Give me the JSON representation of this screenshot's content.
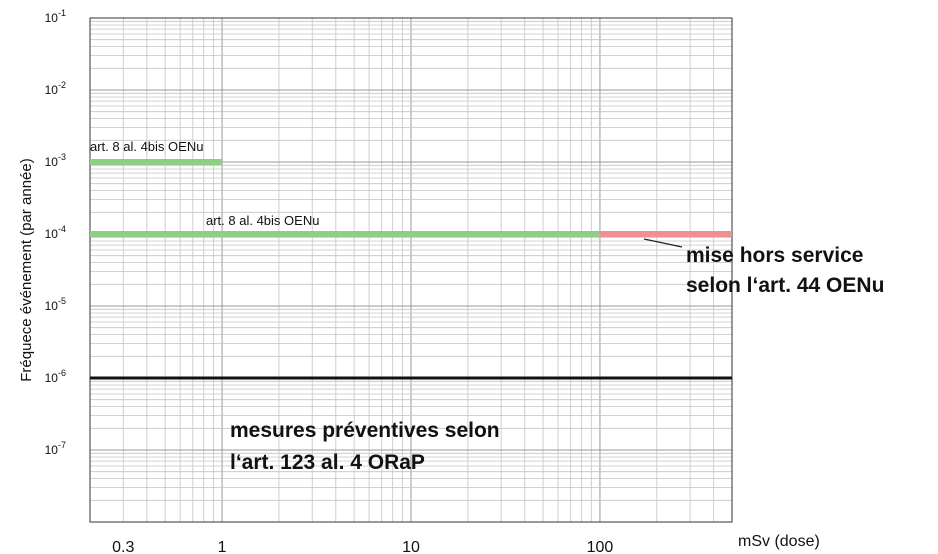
{
  "chart_data": {
    "type": "line",
    "x_scale": "log",
    "y_scale": "log",
    "xlim": [
      0.2,
      500
    ],
    "ylim": [
      1e-08,
      0.1
    ],
    "grid": true,
    "ylabel": "Fréquece événement (par année)",
    "x_unit_label": "mSv (dose)",
    "x_ticks": [
      {
        "value": 0.3,
        "label": "0.3"
      },
      {
        "value": 1,
        "label": "1"
      },
      {
        "value": 10,
        "label": "10"
      },
      {
        "value": 100,
        "label": "100"
      }
    ],
    "y_ticks": [
      {
        "value": 0.1,
        "base": "10",
        "exp": "-1"
      },
      {
        "value": 0.01,
        "base": "10",
        "exp": "-2"
      },
      {
        "value": 0.001,
        "base": "10",
        "exp": "-3"
      },
      {
        "value": 0.0001,
        "base": "10",
        "exp": "-4"
      },
      {
        "value": 1e-05,
        "base": "10",
        "exp": "-5"
      },
      {
        "value": 1e-06,
        "base": "10",
        "exp": "-6"
      },
      {
        "value": 1e-07,
        "base": "10",
        "exp": "-7"
      }
    ],
    "series": [
      {
        "x": [
          0.2,
          1
        ],
        "y": [
          0.001,
          0.001
        ],
        "color": "#8fce85"
      },
      {
        "x": [
          0.2,
          100
        ],
        "y": [
          0.0001,
          0.0001
        ],
        "color": "#8fce85"
      },
      {
        "x": [
          100,
          500
        ],
        "y": [
          0.0001,
          0.0001
        ],
        "color": "#ef8f8f"
      },
      {
        "x": [
          0.2,
          500
        ],
        "y": [
          1e-06,
          1e-06
        ],
        "color": "#111111"
      }
    ],
    "annotations": {
      "label_upper": "art. 8 al. 4bis OENu",
      "label_lower": "art. 8 al. 4bis OENu",
      "shutdown_line1": "mise hors service",
      "shutdown_line2": "selon l‘art. 44 OENu",
      "preventive_line1": "mesures préventives selon",
      "preventive_line2": "l‘art. 123 al. 4 ORaP"
    }
  }
}
